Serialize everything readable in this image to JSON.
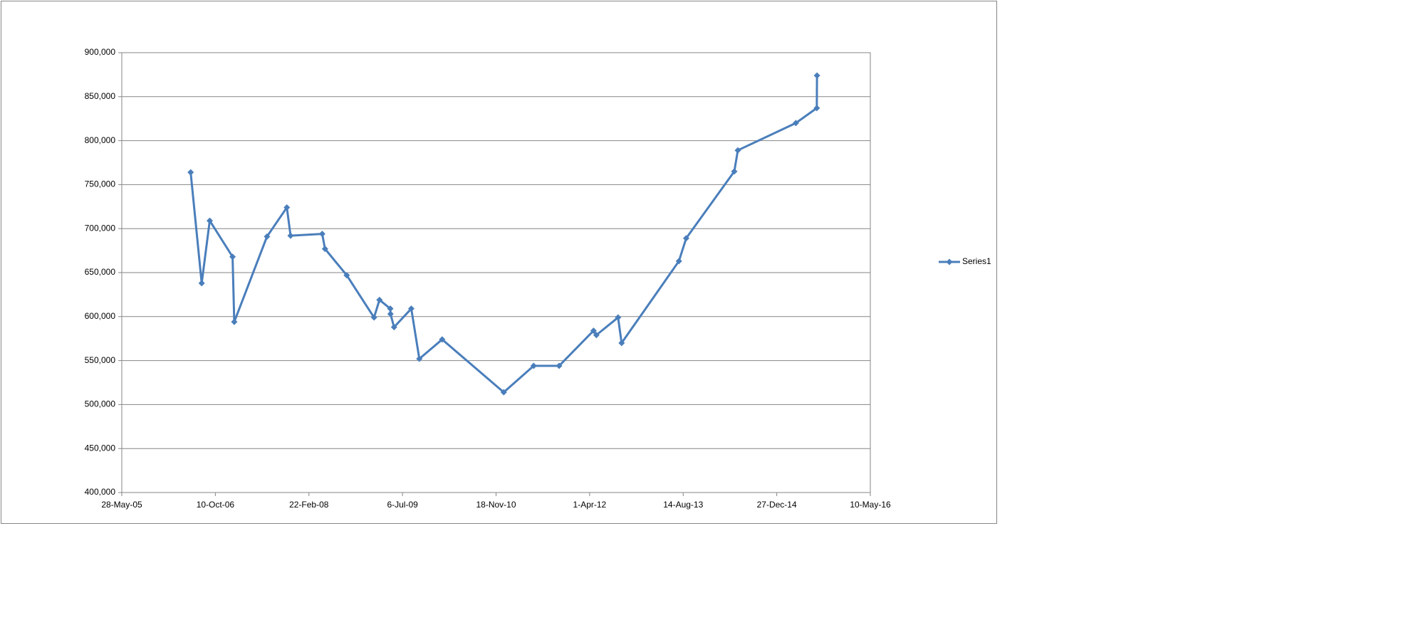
{
  "chart_data": {
    "type": "line",
    "x": [
      "2006-05-31",
      "2006-07-29",
      "2006-09-10",
      "2007-01-10",
      "2007-01-19",
      "2007-07-13",
      "2007-10-27",
      "2007-11-16",
      "2008-05-03",
      "2008-05-18",
      "2008-09-11",
      "2009-02-04",
      "2009-03-05",
      "2009-05-02",
      "2009-05-03",
      "2009-05-22",
      "2009-08-22",
      "2009-10-04",
      "2010-02-03",
      "2010-12-29",
      "2011-06-07",
      "2011-10-21",
      "2012-04-22",
      "2012-05-07",
      "2012-08-31",
      "2012-09-19",
      "2013-07-22",
      "2013-08-30",
      "2014-05-14",
      "2014-06-02",
      "2015-04-08",
      "2015-07-29",
      "2015-07-30"
    ],
    "series": [
      {
        "name": "Series1",
        "color": "#4a7ebb",
        "values": [
          764000,
          638000,
          709000,
          668000,
          594000,
          691000,
          724000,
          692000,
          694000,
          677000,
          647000,
          599000,
          619000,
          609000,
          603000,
          588000,
          609000,
          552000,
          574000,
          514000,
          544000,
          544000,
          584000,
          579000,
          599000,
          570000,
          663000,
          689000,
          765000,
          789000,
          820000,
          837000,
          874000
        ]
      }
    ],
    "xlim": [
      "2005-05-28",
      "2016-05-10"
    ],
    "xticks": [
      {
        "value": "2005-05-28",
        "label": "28-May-05"
      },
      {
        "value": "2006-10-10",
        "label": "10-Oct-06"
      },
      {
        "value": "2008-02-22",
        "label": "22-Feb-08"
      },
      {
        "value": "2009-07-06",
        "label": "6-Jul-09"
      },
      {
        "value": "2010-11-18",
        "label": "18-Nov-10"
      },
      {
        "value": "2012-04-01",
        "label": "1-Apr-12"
      },
      {
        "value": "2013-08-14",
        "label": "14-Aug-13"
      },
      {
        "value": "2014-12-27",
        "label": "27-Dec-14"
      },
      {
        "value": "2016-05-10",
        "label": "10-May-16"
      }
    ],
    "ylim": [
      400000,
      900000
    ],
    "yticks": [
      {
        "value": 400000,
        "label": "400,000"
      },
      {
        "value": 450000,
        "label": "450,000"
      },
      {
        "value": 500000,
        "label": "500,000"
      },
      {
        "value": 550000,
        "label": "550,000"
      },
      {
        "value": 600000,
        "label": "600,000"
      },
      {
        "value": 650000,
        "label": "650,000"
      },
      {
        "value": 700000,
        "label": "700,000"
      },
      {
        "value": 750000,
        "label": "750,000"
      },
      {
        "value": 800000,
        "label": "800,000"
      },
      {
        "value": 850000,
        "label": "850,000"
      },
      {
        "value": 900000,
        "label": "900,000"
      }
    ],
    "grid": true,
    "legend": "right"
  }
}
